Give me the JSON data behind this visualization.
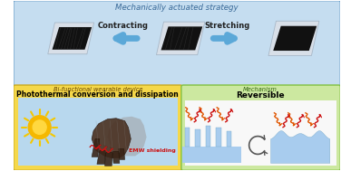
{
  "title_top": "Mechanically actuated strategy",
  "title_bl": "Bi-functional wearable device",
  "title_br": "Mechanism",
  "label_contracting": "Contracting",
  "label_stretching": "Stretching",
  "label_photothermal": "Photothermal conversion and dissipation",
  "label_emw": "EMW shielding",
  "label_reversible": "Reversible",
  "bg_top": "#c5ddf0",
  "bg_bl": "#f5d84a",
  "bg_br": "#cce8a0",
  "border_top": "#6a9ec8",
  "border_bl": "#c8aa20",
  "border_br": "#80c040",
  "arrow_blue": "#5ba8d8",
  "emw_color": "#cc1111",
  "orange_color": "#e05500",
  "red_color": "#cc1111",
  "sky_color": "#b8d8ee",
  "mech_blue": "#a8ccee",
  "mech_dark_blue": "#7aaccc",
  "fig_bg": "#ffffff",
  "white": "#ffffff"
}
